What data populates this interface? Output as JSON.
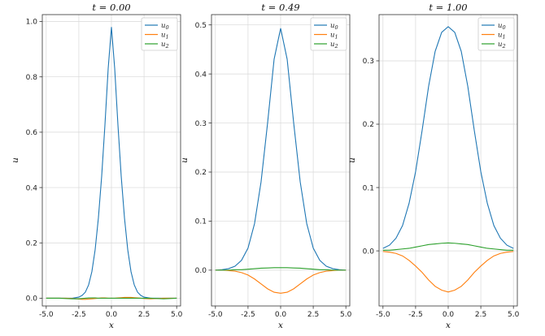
{
  "chart_data": [
    {
      "type": "line",
      "title": "t = 0.00",
      "xlabel": "x",
      "ylabel": "u",
      "xlim": [
        -5.3,
        5.3
      ],
      "ylim": [
        -0.028,
        1.025
      ],
      "xticks": [
        -5.0,
        -2.5,
        0.0,
        2.5,
        5.0
      ],
      "xtick_labels": [
        "-5.0",
        "-2.5",
        "0.0",
        "2.5",
        "5.0"
      ],
      "yticks": [
        0.0,
        0.2,
        0.4,
        0.6,
        0.8,
        1.0
      ],
      "ytick_labels": [
        "0.0",
        "0.2",
        "0.4",
        "0.6",
        "0.8",
        "1.0"
      ],
      "grid": true,
      "legend_placement": "top-right",
      "x": [
        -5.0,
        -4.5,
        -4.0,
        -3.5,
        -3.0,
        -2.5,
        -2.25,
        -2.0,
        -1.75,
        -1.5,
        -1.25,
        -1.0,
        -0.75,
        -0.5,
        -0.25,
        0.0,
        0.25,
        0.5,
        0.75,
        1.0,
        1.25,
        1.5,
        1.75,
        2.0,
        2.25,
        2.5,
        3.0,
        3.5,
        4.0,
        4.5,
        5.0
      ],
      "series": [
        {
          "name": "u0",
          "color": "#1f77b4",
          "values": [
            0.0,
            0.0,
            0.0,
            0.0,
            0.0,
            0.004,
            0.01,
            0.022,
            0.048,
            0.096,
            0.175,
            0.29,
            0.44,
            0.625,
            0.83,
            0.98,
            0.83,
            0.625,
            0.44,
            0.29,
            0.175,
            0.096,
            0.048,
            0.022,
            0.01,
            0.004,
            0.0,
            0.0,
            0.0,
            0.0,
            0.0
          ]
        },
        {
          "name": "u1",
          "color": "#ff7f0e",
          "values": [
            0.0,
            0.0,
            0.0,
            0.0,
            -0.001,
            -0.003,
            -0.004,
            -0.004,
            -0.003,
            -0.002,
            -0.001,
            0.0,
            0.001,
            0.001,
            0.0,
            0.0,
            0.0,
            0.001,
            0.002,
            0.003,
            0.003,
            0.003,
            0.002,
            0.001,
            0.0,
            -0.001,
            -0.002,
            -0.001,
            0.0,
            0.0,
            0.0
          ]
        },
        {
          "name": "u2",
          "color": "#2ca02c",
          "values": [
            0.0,
            0.0,
            0.0,
            -0.001,
            -0.002,
            -0.002,
            -0.001,
            0.0,
            0.001,
            0.001,
            0.001,
            0.0,
            0.0,
            0.0,
            0.0,
            0.0,
            0.0,
            0.0,
            0.0,
            0.0,
            0.0,
            0.0,
            0.0,
            0.0,
            0.0,
            0.0,
            0.0,
            -0.001,
            -0.002,
            -0.001,
            0.0
          ]
        }
      ]
    },
    {
      "type": "line",
      "title": "t = 0.49",
      "xlabel": "x",
      "ylabel": "u",
      "xlim": [
        -5.3,
        5.3
      ],
      "ylim": [
        -0.073,
        0.521
      ],
      "xticks": [
        -5.0,
        -2.5,
        0.0,
        2.5,
        5.0
      ],
      "xtick_labels": [
        "-5.0",
        "-2.5",
        "0.0",
        "2.5",
        "5.0"
      ],
      "yticks": [
        0.0,
        0.1,
        0.2,
        0.3,
        0.4,
        0.5
      ],
      "ytick_labels": [
        "0.0",
        "0.1",
        "0.2",
        "0.3",
        "0.4",
        "0.5"
      ],
      "grid": true,
      "legend_placement": "top-right",
      "x": [
        -5.0,
        -4.5,
        -4.0,
        -3.5,
        -3.0,
        -2.5,
        -2.0,
        -1.5,
        -1.0,
        -0.5,
        0.0,
        0.5,
        1.0,
        1.5,
        2.0,
        2.5,
        3.0,
        3.5,
        4.0,
        4.5,
        5.0
      ],
      "series": [
        {
          "name": "u0",
          "color": "#1f77b4",
          "values": [
            0.0,
            0.001,
            0.003,
            0.008,
            0.02,
            0.045,
            0.095,
            0.18,
            0.3,
            0.43,
            0.493,
            0.43,
            0.3,
            0.18,
            0.095,
            0.045,
            0.02,
            0.008,
            0.003,
            0.001,
            0.0
          ]
        },
        {
          "name": "u1",
          "color": "#ff7f0e",
          "values": [
            0.0,
            0.0,
            -0.001,
            -0.002,
            -0.005,
            -0.01,
            -0.018,
            -0.028,
            -0.038,
            -0.045,
            -0.047,
            -0.045,
            -0.038,
            -0.028,
            -0.018,
            -0.01,
            -0.005,
            -0.002,
            -0.001,
            0.0,
            0.0
          ]
        },
        {
          "name": "u2",
          "color": "#2ca02c",
          "values": [
            0.0,
            0.0,
            0.0,
            0.001,
            0.001,
            0.002,
            0.003,
            0.004,
            0.0045,
            0.005,
            0.005,
            0.005,
            0.0045,
            0.004,
            0.003,
            0.002,
            0.001,
            0.001,
            0.0,
            0.0,
            0.0
          ]
        }
      ]
    },
    {
      "type": "line",
      "title": "t = 1.00",
      "xlabel": "x",
      "ylabel": "u",
      "xlim": [
        -5.3,
        5.3
      ],
      "ylim": [
        -0.087,
        0.373
      ],
      "xticks": [
        -5.0,
        -2.5,
        0.0,
        2.5,
        5.0
      ],
      "xtick_labels": [
        "-5.0",
        "-2.5",
        "0.0",
        "2.5",
        "5.0"
      ],
      "yticks": [
        0.0,
        0.1,
        0.2,
        0.3
      ],
      "ytick_labels": [
        "0.0",
        "0.1",
        "0.2",
        "0.3"
      ],
      "grid": true,
      "legend_placement": "top-right",
      "x": [
        -5.0,
        -4.5,
        -4.0,
        -3.5,
        -3.0,
        -2.5,
        -2.0,
        -1.5,
        -1.0,
        -0.5,
        0.0,
        0.5,
        1.0,
        1.5,
        2.0,
        2.5,
        3.0,
        3.5,
        4.0,
        4.5,
        5.0
      ],
      "series": [
        {
          "name": "u0",
          "color": "#1f77b4",
          "values": [
            0.004,
            0.009,
            0.02,
            0.04,
            0.075,
            0.125,
            0.19,
            0.26,
            0.315,
            0.345,
            0.354,
            0.345,
            0.315,
            0.26,
            0.19,
            0.125,
            0.075,
            0.04,
            0.02,
            0.009,
            0.004
          ]
        },
        {
          "name": "u1",
          "color": "#ff7f0e",
          "values": [
            -0.001,
            -0.002,
            -0.004,
            -0.008,
            -0.015,
            -0.024,
            -0.034,
            -0.046,
            -0.056,
            -0.062,
            -0.065,
            -0.062,
            -0.056,
            -0.046,
            -0.034,
            -0.024,
            -0.015,
            -0.008,
            -0.004,
            -0.002,
            -0.001
          ]
        },
        {
          "name": "u2",
          "color": "#2ca02c",
          "values": [
            0.001,
            0.001,
            0.002,
            0.003,
            0.004,
            0.006,
            0.008,
            0.01,
            0.011,
            0.012,
            0.0125,
            0.012,
            0.011,
            0.01,
            0.008,
            0.006,
            0.004,
            0.003,
            0.002,
            0.001,
            0.001
          ]
        }
      ]
    }
  ]
}
